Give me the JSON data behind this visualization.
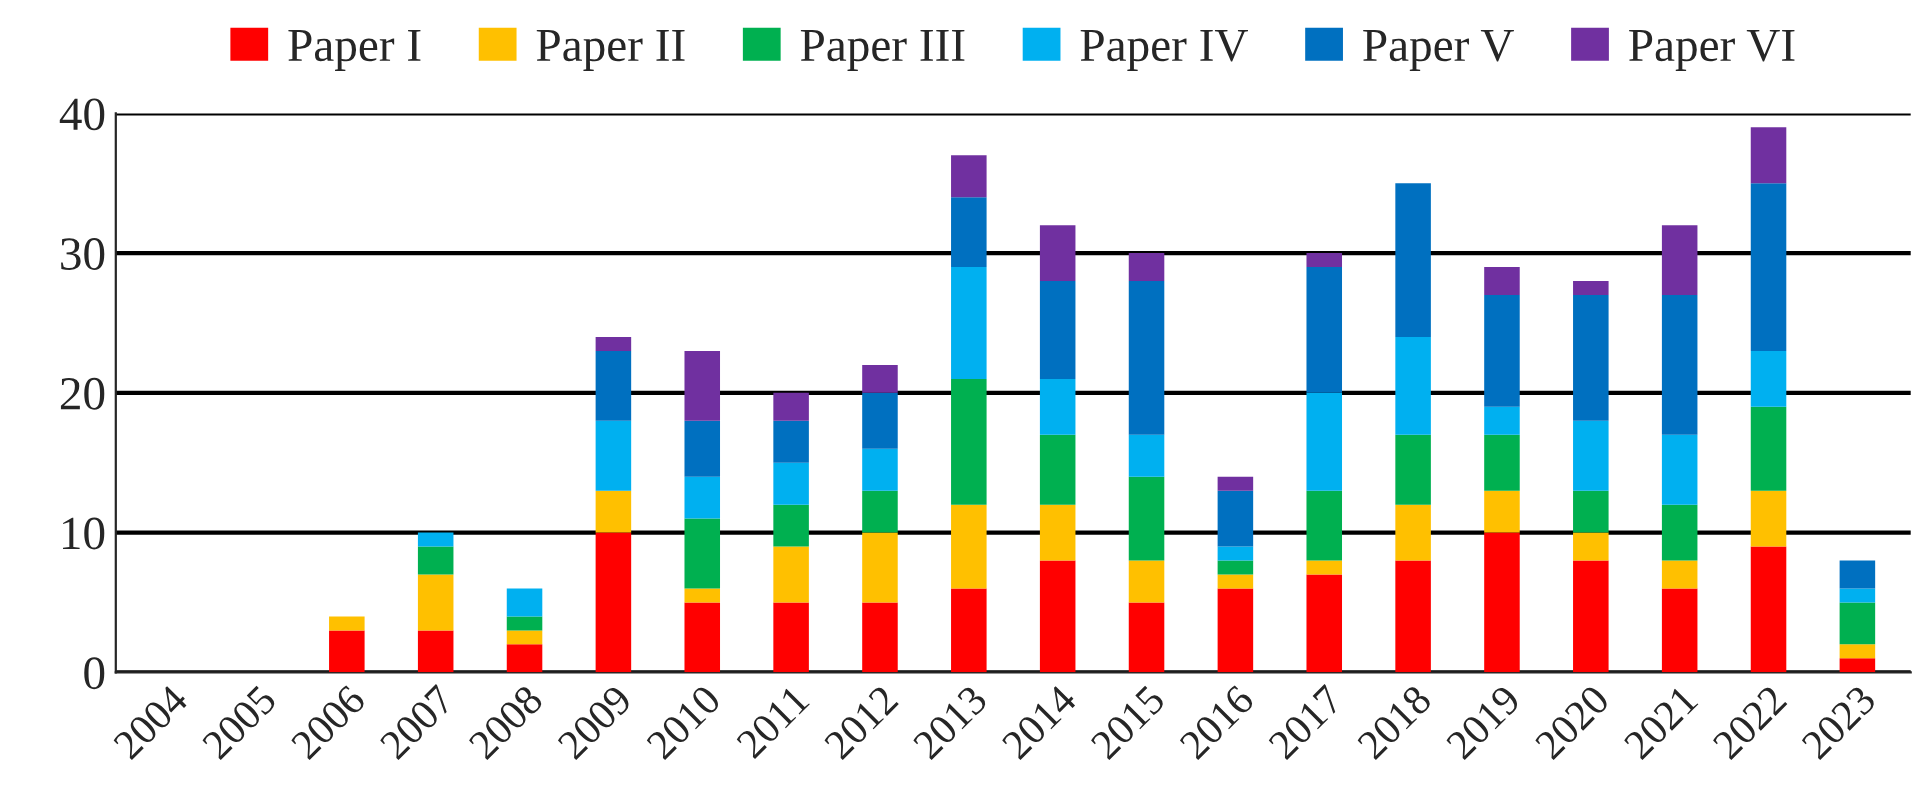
{
  "chart_data": {
    "type": "bar",
    "stacked": true,
    "categories": [
      "2004",
      "2005",
      "2006",
      "2007",
      "2008",
      "2009",
      "2010",
      "2011",
      "2012",
      "2013",
      "2014",
      "2015",
      "2016",
      "2017",
      "2018",
      "2019",
      "2020",
      "2021",
      "2022",
      "2023"
    ],
    "series": [
      {
        "name": "Paper I",
        "color": "#ff0000",
        "values": [
          0,
          0,
          3,
          3,
          2,
          10,
          5,
          5,
          5,
          6,
          8,
          5,
          6,
          7,
          8,
          10,
          8,
          6,
          9,
          1
        ]
      },
      {
        "name": "Paper II",
        "color": "#ffc000",
        "values": [
          0,
          0,
          1,
          4,
          1,
          3,
          1,
          4,
          5,
          6,
          4,
          3,
          1,
          1,
          4,
          3,
          2,
          2,
          4,
          1
        ]
      },
      {
        "name": "Paper III",
        "color": "#00b050",
        "values": [
          0,
          0,
          0,
          2,
          1,
          0,
          5,
          3,
          3,
          9,
          5,
          6,
          1,
          5,
          5,
          4,
          3,
          4,
          6,
          3
        ]
      },
      {
        "name": "Paper IV",
        "color": "#00b0f0",
        "values": [
          0,
          0,
          0,
          1,
          2,
          5,
          3,
          3,
          3,
          8,
          4,
          3,
          1,
          7,
          7,
          2,
          5,
          5,
          4,
          1
        ]
      },
      {
        "name": "Paper V",
        "color": "#0070c0",
        "values": [
          0,
          0,
          0,
          0,
          0,
          5,
          4,
          3,
          4,
          5,
          7,
          11,
          4,
          9,
          11,
          8,
          9,
          10,
          12,
          2
        ]
      },
      {
        "name": "Paper VI",
        "color": "#7030a0",
        "values": [
          0,
          0,
          0,
          0,
          0,
          1,
          5,
          2,
          2,
          3,
          4,
          2,
          1,
          1,
          0,
          2,
          1,
          5,
          4,
          0
        ]
      }
    ],
    "ylim": [
      0,
      40
    ],
    "yticks": [
      0,
      10,
      20,
      30,
      40
    ],
    "grid": "y",
    "legend": "top"
  }
}
